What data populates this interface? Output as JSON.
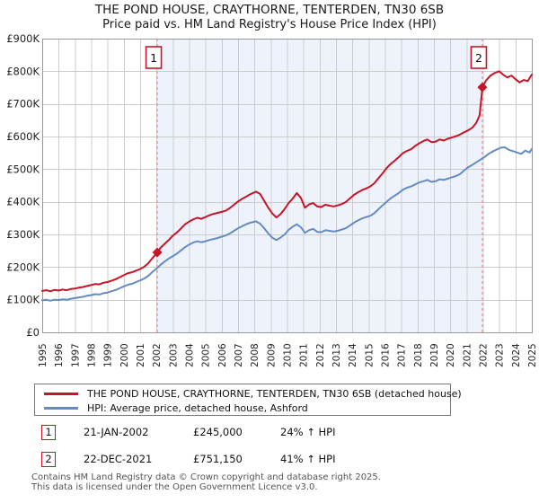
{
  "title": {
    "line1": "THE POND HOUSE, CRAYTHORNE, TENTERDEN, TN30 6SB",
    "line2": "Price paid vs. HM Land Registry's House Price Index (HPI)"
  },
  "colors": {
    "property_line": "#c81426",
    "hpi_line": "#648cc3",
    "event_dashed_line": "#f09090",
    "shaded_span": "#eef3fb",
    "grid": "#cccccc",
    "plot_border": "#999999",
    "axis_text": "#222222",
    "event_box_border": "#c81426"
  },
  "chart_data": {
    "type": "line",
    "title": "THE POND HOUSE, CRAYTHORNE, TENTERDEN, TN30 6SB — Price paid vs. HM Land Registry's House Price Index (HPI)",
    "x_axis": {
      "range_years": [
        1995,
        2025
      ],
      "tick_years": [
        "1995",
        "1996",
        "1997",
        "1998",
        "1999",
        "2000",
        "2001",
        "2002",
        "2003",
        "2004",
        "2005",
        "2006",
        "2007",
        "2008",
        "2009",
        "2010",
        "2011",
        "2012",
        "2013",
        "2014",
        "2015",
        "2016",
        "2017",
        "2018",
        "2019",
        "2020",
        "2021",
        "2022",
        "2023",
        "2024",
        "2025"
      ]
    },
    "y_axis": {
      "range_thousands": [
        0,
        900
      ],
      "tick_step_thousands": 100,
      "tick_labels": [
        "£0",
        "£100K",
        "£200K",
        "£300K",
        "£400K",
        "£500K",
        "£600K",
        "£700K",
        "£800K",
        "£900K"
      ]
    },
    "grid": true,
    "legend_position": "bottom",
    "shaded_span_years": [
      2002.05,
      2021.97
    ],
    "series": [
      {
        "name": "THE POND HOUSE, CRAYTHORNE, TENTERDEN, TN30 6SB (detached house)",
        "color": "#c81426",
        "points_year_value_k": [
          [
            1995.0,
            127
          ],
          [
            1995.25,
            129
          ],
          [
            1995.5,
            126
          ],
          [
            1995.75,
            130
          ],
          [
            1996.0,
            128
          ],
          [
            1996.25,
            131
          ],
          [
            1996.5,
            129
          ],
          [
            1996.75,
            133
          ],
          [
            1997.0,
            134
          ],
          [
            1997.25,
            137
          ],
          [
            1997.5,
            139
          ],
          [
            1997.75,
            142
          ],
          [
            1998.0,
            145
          ],
          [
            1998.25,
            148
          ],
          [
            1998.5,
            147
          ],
          [
            1998.75,
            152
          ],
          [
            1999.0,
            154
          ],
          [
            1999.25,
            158
          ],
          [
            1999.5,
            163
          ],
          [
            1999.75,
            169
          ],
          [
            2000.0,
            175
          ],
          [
            2000.25,
            181
          ],
          [
            2000.5,
            184
          ],
          [
            2000.75,
            189
          ],
          [
            2001.0,
            194
          ],
          [
            2001.25,
            201
          ],
          [
            2001.5,
            212
          ],
          [
            2001.75,
            227
          ],
          [
            2002.05,
            245
          ],
          [
            2002.25,
            259
          ],
          [
            2002.5,
            271
          ],
          [
            2002.75,
            283
          ],
          [
            2003.0,
            296
          ],
          [
            2003.25,
            306
          ],
          [
            2003.5,
            318
          ],
          [
            2003.75,
            331
          ],
          [
            2004.0,
            339
          ],
          [
            2004.25,
            346
          ],
          [
            2004.5,
            351
          ],
          [
            2004.75,
            348
          ],
          [
            2005.0,
            353
          ],
          [
            2005.25,
            359
          ],
          [
            2005.5,
            363
          ],
          [
            2005.75,
            366
          ],
          [
            2006.0,
            369
          ],
          [
            2006.25,
            373
          ],
          [
            2006.5,
            381
          ],
          [
            2006.75,
            391
          ],
          [
            2007.0,
            401
          ],
          [
            2007.25,
            409
          ],
          [
            2007.5,
            416
          ],
          [
            2007.75,
            423
          ],
          [
            2008.1,
            431
          ],
          [
            2008.35,
            424
          ],
          [
            2008.6,
            403
          ],
          [
            2008.85,
            382
          ],
          [
            2009.1,
            364
          ],
          [
            2009.35,
            352
          ],
          [
            2009.6,
            362
          ],
          [
            2009.85,
            378
          ],
          [
            2010.1,
            396
          ],
          [
            2010.35,
            410
          ],
          [
            2010.6,
            427
          ],
          [
            2010.85,
            412
          ],
          [
            2011.1,
            382
          ],
          [
            2011.35,
            392
          ],
          [
            2011.6,
            396
          ],
          [
            2011.85,
            386
          ],
          [
            2012.1,
            384
          ],
          [
            2012.35,
            391
          ],
          [
            2012.6,
            388
          ],
          [
            2012.85,
            386
          ],
          [
            2013.1,
            389
          ],
          [
            2013.35,
            393
          ],
          [
            2013.6,
            399
          ],
          [
            2013.85,
            410
          ],
          [
            2014.1,
            421
          ],
          [
            2014.35,
            429
          ],
          [
            2014.6,
            436
          ],
          [
            2014.85,
            441
          ],
          [
            2015.1,
            447
          ],
          [
            2015.35,
            457
          ],
          [
            2015.6,
            472
          ],
          [
            2015.85,
            487
          ],
          [
            2016.1,
            503
          ],
          [
            2016.35,
            516
          ],
          [
            2016.6,
            526
          ],
          [
            2016.85,
            537
          ],
          [
            2017.1,
            549
          ],
          [
            2017.35,
            556
          ],
          [
            2017.6,
            561
          ],
          [
            2017.85,
            571
          ],
          [
            2018.1,
            579
          ],
          [
            2018.35,
            586
          ],
          [
            2018.6,
            591
          ],
          [
            2018.85,
            583
          ],
          [
            2019.1,
            584
          ],
          [
            2019.35,
            591
          ],
          [
            2019.6,
            588
          ],
          [
            2019.85,
            593
          ],
          [
            2020.1,
            597
          ],
          [
            2020.35,
            601
          ],
          [
            2020.6,
            606
          ],
          [
            2020.85,
            613
          ],
          [
            2021.1,
            619
          ],
          [
            2021.35,
            627
          ],
          [
            2021.6,
            642
          ],
          [
            2021.8,
            665
          ],
          [
            2021.97,
            751.15
          ],
          [
            2022.2,
            772
          ],
          [
            2022.45,
            786
          ],
          [
            2022.7,
            794
          ],
          [
            2023.0,
            800
          ],
          [
            2023.25,
            789
          ],
          [
            2023.5,
            781
          ],
          [
            2023.75,
            787
          ],
          [
            2024.0,
            776
          ],
          [
            2024.25,
            766
          ],
          [
            2024.5,
            773
          ],
          [
            2024.75,
            770
          ],
          [
            2025.0,
            790
          ]
        ]
      },
      {
        "name": "HPI: Average price, detached house, Ashford",
        "color": "#648cc3",
        "points_year_value_k": [
          [
            1995.0,
            98
          ],
          [
            1995.25,
            100
          ],
          [
            1995.5,
            97
          ],
          [
            1995.75,
            100
          ],
          [
            1996.0,
            99
          ],
          [
            1996.25,
            101
          ],
          [
            1996.5,
            100
          ],
          [
            1996.75,
            103
          ],
          [
            1997.0,
            105
          ],
          [
            1997.25,
            107
          ],
          [
            1997.5,
            109
          ],
          [
            1997.75,
            112
          ],
          [
            1998.0,
            114
          ],
          [
            1998.25,
            117
          ],
          [
            1998.5,
            116
          ],
          [
            1998.75,
            120
          ],
          [
            1999.0,
            122
          ],
          [
            1999.25,
            126
          ],
          [
            1999.5,
            130
          ],
          [
            1999.75,
            135
          ],
          [
            2000.0,
            141
          ],
          [
            2000.25,
            146
          ],
          [
            2000.5,
            149
          ],
          [
            2000.75,
            154
          ],
          [
            2001.0,
            159
          ],
          [
            2001.25,
            165
          ],
          [
            2001.5,
            173
          ],
          [
            2001.75,
            185
          ],
          [
            2002.05,
            197
          ],
          [
            2002.25,
            207
          ],
          [
            2002.5,
            217
          ],
          [
            2002.75,
            226
          ],
          [
            2003.0,
            233
          ],
          [
            2003.25,
            241
          ],
          [
            2003.5,
            251
          ],
          [
            2003.75,
            261
          ],
          [
            2004.0,
            269
          ],
          [
            2004.25,
            275
          ],
          [
            2004.5,
            279
          ],
          [
            2004.75,
            276
          ],
          [
            2005.0,
            279
          ],
          [
            2005.25,
            283
          ],
          [
            2005.5,
            286
          ],
          [
            2005.75,
            289
          ],
          [
            2006.0,
            293
          ],
          [
            2006.25,
            297
          ],
          [
            2006.5,
            303
          ],
          [
            2006.75,
            311
          ],
          [
            2007.0,
            319
          ],
          [
            2007.25,
            325
          ],
          [
            2007.5,
            331
          ],
          [
            2007.75,
            336
          ],
          [
            2008.1,
            340
          ],
          [
            2008.35,
            333
          ],
          [
            2008.6,
            319
          ],
          [
            2008.85,
            303
          ],
          [
            2009.1,
            290
          ],
          [
            2009.35,
            283
          ],
          [
            2009.6,
            290
          ],
          [
            2009.85,
            300
          ],
          [
            2010.1,
            314
          ],
          [
            2010.35,
            324
          ],
          [
            2010.6,
            331
          ],
          [
            2010.85,
            322
          ],
          [
            2011.1,
            305
          ],
          [
            2011.35,
            313
          ],
          [
            2011.6,
            317
          ],
          [
            2011.85,
            308
          ],
          [
            2012.1,
            307
          ],
          [
            2012.35,
            313
          ],
          [
            2012.6,
            311
          ],
          [
            2012.85,
            309
          ],
          [
            2013.1,
            311
          ],
          [
            2013.35,
            315
          ],
          [
            2013.6,
            319
          ],
          [
            2013.85,
            327
          ],
          [
            2014.1,
            336
          ],
          [
            2014.35,
            343
          ],
          [
            2014.6,
            349
          ],
          [
            2014.85,
            353
          ],
          [
            2015.1,
            357
          ],
          [
            2015.35,
            365
          ],
          [
            2015.6,
            377
          ],
          [
            2015.85,
            389
          ],
          [
            2016.1,
            400
          ],
          [
            2016.35,
            411
          ],
          [
            2016.6,
            419
          ],
          [
            2016.85,
            427
          ],
          [
            2017.1,
            437
          ],
          [
            2017.35,
            443
          ],
          [
            2017.6,
            447
          ],
          [
            2017.85,
            453
          ],
          [
            2018.1,
            459
          ],
          [
            2018.35,
            463
          ],
          [
            2018.6,
            467
          ],
          [
            2018.85,
            461
          ],
          [
            2019.1,
            463
          ],
          [
            2019.35,
            469
          ],
          [
            2019.6,
            467
          ],
          [
            2019.85,
            471
          ],
          [
            2020.1,
            475
          ],
          [
            2020.35,
            479
          ],
          [
            2020.6,
            485
          ],
          [
            2020.85,
            496
          ],
          [
            2021.1,
            506
          ],
          [
            2021.35,
            513
          ],
          [
            2021.6,
            521
          ],
          [
            2021.85,
            529
          ],
          [
            2022.1,
            537
          ],
          [
            2022.35,
            547
          ],
          [
            2022.6,
            554
          ],
          [
            2022.85,
            560
          ],
          [
            2023.1,
            566
          ],
          [
            2023.35,
            567
          ],
          [
            2023.6,
            559
          ],
          [
            2023.85,
            555
          ],
          [
            2024.1,
            551
          ],
          [
            2024.35,
            547
          ],
          [
            2024.6,
            557
          ],
          [
            2024.85,
            551
          ],
          [
            2025.0,
            562
          ]
        ]
      }
    ],
    "events": [
      {
        "label": "1",
        "x_year": 2002.05,
        "value_k": 245
      },
      {
        "label": "2",
        "x_year": 2021.97,
        "value_k": 751.15
      }
    ]
  },
  "legend": {
    "items": [
      {
        "label": "THE POND HOUSE, CRAYTHORNE, TENTERDEN, TN30 6SB (detached house)",
        "color": "#c81426"
      },
      {
        "label": "HPI: Average price, detached house, Ashford",
        "color": "#648cc3"
      }
    ]
  },
  "events_table": {
    "rows": [
      {
        "num": "1",
        "date": "21-JAN-2002",
        "price": "£245,000",
        "delta": "24% ↑ HPI"
      },
      {
        "num": "2",
        "date": "22-DEC-2021",
        "price": "£751,150",
        "delta": "41% ↑ HPI"
      }
    ]
  },
  "footer": {
    "line1": "Contains HM Land Registry data © Crown copyright and database right 2025.",
    "line2": "This data is licensed under the Open Government Licence v3.0."
  }
}
